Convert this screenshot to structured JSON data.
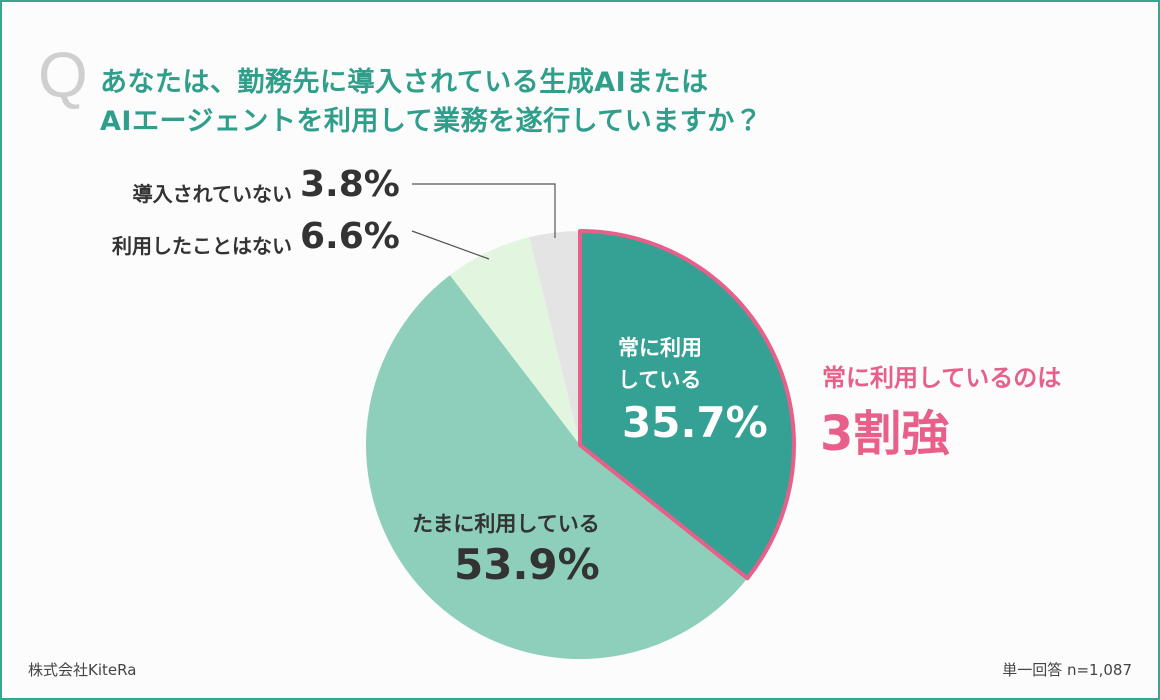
{
  "q_mark": "Q",
  "chart_data": {
    "type": "pie",
    "title": [
      "あなたは、勤務先に導入されている生成AIまたは",
      "AIエージェントを利用して業務を遂行していますか？"
    ],
    "categories": [
      "常に利用している",
      "たまに利用している",
      "利用したことはない",
      "導入されていない"
    ],
    "values": [
      35.7,
      53.9,
      6.6,
      3.8
    ],
    "value_labels": [
      "35.7%",
      "53.9%",
      "6.6%",
      "3.8%"
    ],
    "colors": [
      "#35a194",
      "#8dcfba",
      "#e2f6df",
      "#e4e4e4"
    ],
    "highlighted": [
      true,
      false,
      false,
      false
    ],
    "highlight_color": "#e8608a",
    "annotation": [
      "常に利用しているのは",
      "3割強"
    ],
    "source": "株式会社KiteRa",
    "note": "単一回答 n=1,087"
  }
}
